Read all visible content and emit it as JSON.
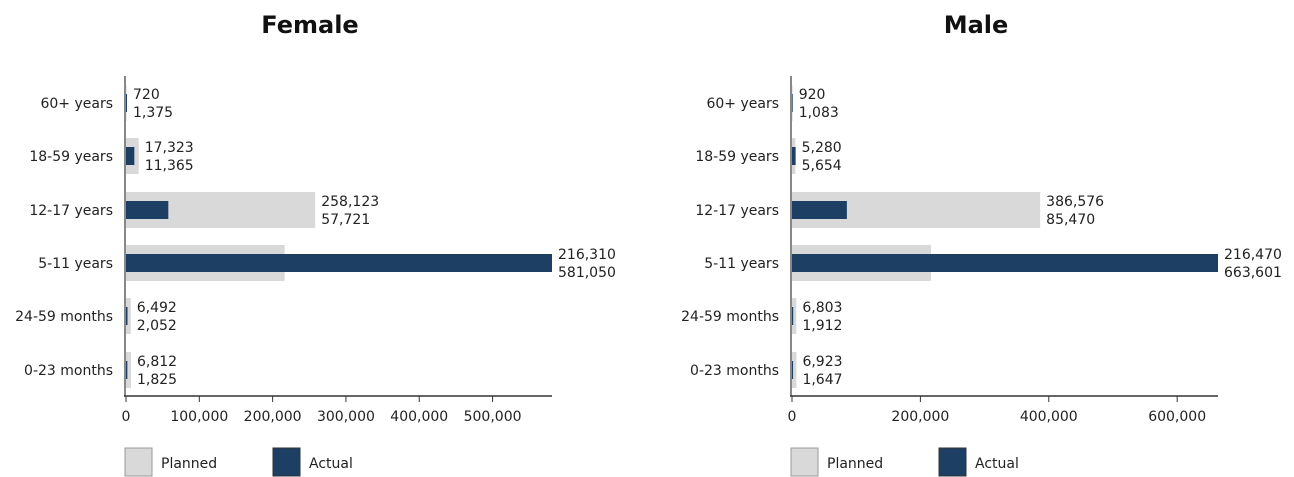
{
  "chart_data": [
    {
      "type": "bar",
      "orientation": "horizontal",
      "title": "Female",
      "categories": [
        "60+ years",
        "18-59 years",
        "12-17 years",
        "5-11 years",
        "24-59 months",
        "0-23 months"
      ],
      "series": [
        {
          "name": "Planned",
          "values": [
            720,
            17323,
            258123,
            216310,
            6492,
            6812
          ],
          "labels": [
            "720",
            "17,323",
            "258,123",
            "216,310",
            "6,492",
            "6,812"
          ]
        },
        {
          "name": "Actual",
          "values": [
            1375,
            11365,
            57721,
            581050,
            2052,
            1825
          ],
          "labels": [
            "1,375",
            "11,365",
            "57,721",
            "581,050",
            "2,052",
            "1,825"
          ]
        }
      ],
      "xlim": [
        0,
        581050
      ],
      "xticks": [
        0,
        100000,
        200000,
        300000,
        400000,
        500000
      ],
      "xtick_labels": [
        "0",
        "100,000",
        "200,000",
        "300,000",
        "400,000",
        "500,000"
      ],
      "grid": false,
      "legend": "bottom-left"
    },
    {
      "type": "bar",
      "orientation": "horizontal",
      "title": "Male",
      "categories": [
        "60+ years",
        "18-59 years",
        "12-17 years",
        "5-11 years",
        "24-59 months",
        "0-23 months"
      ],
      "series": [
        {
          "name": "Planned",
          "values": [
            920,
            5280,
            386576,
            216470,
            6803,
            6923
          ],
          "labels": [
            "920",
            "5,280",
            "386,576",
            "216,470",
            "6,803",
            "6,923"
          ]
        },
        {
          "name": "Actual",
          "values": [
            1083,
            5654,
            85470,
            663601,
            1912,
            1647
          ],
          "labels": [
            "1,083",
            "5,654",
            "85,470",
            "663,601",
            "1,912",
            "1,647"
          ]
        }
      ],
      "xlim": [
        0,
        663601
      ],
      "xticks": [
        0,
        200000,
        400000,
        600000
      ],
      "xtick_labels": [
        "0",
        "200,000",
        "400,000",
        "600,000"
      ],
      "grid": false,
      "legend": "bottom-left"
    }
  ],
  "colors": {
    "planned": "#d9d9d9",
    "actual": "#1c3f63",
    "axis": "#888888",
    "text": "#222222"
  }
}
